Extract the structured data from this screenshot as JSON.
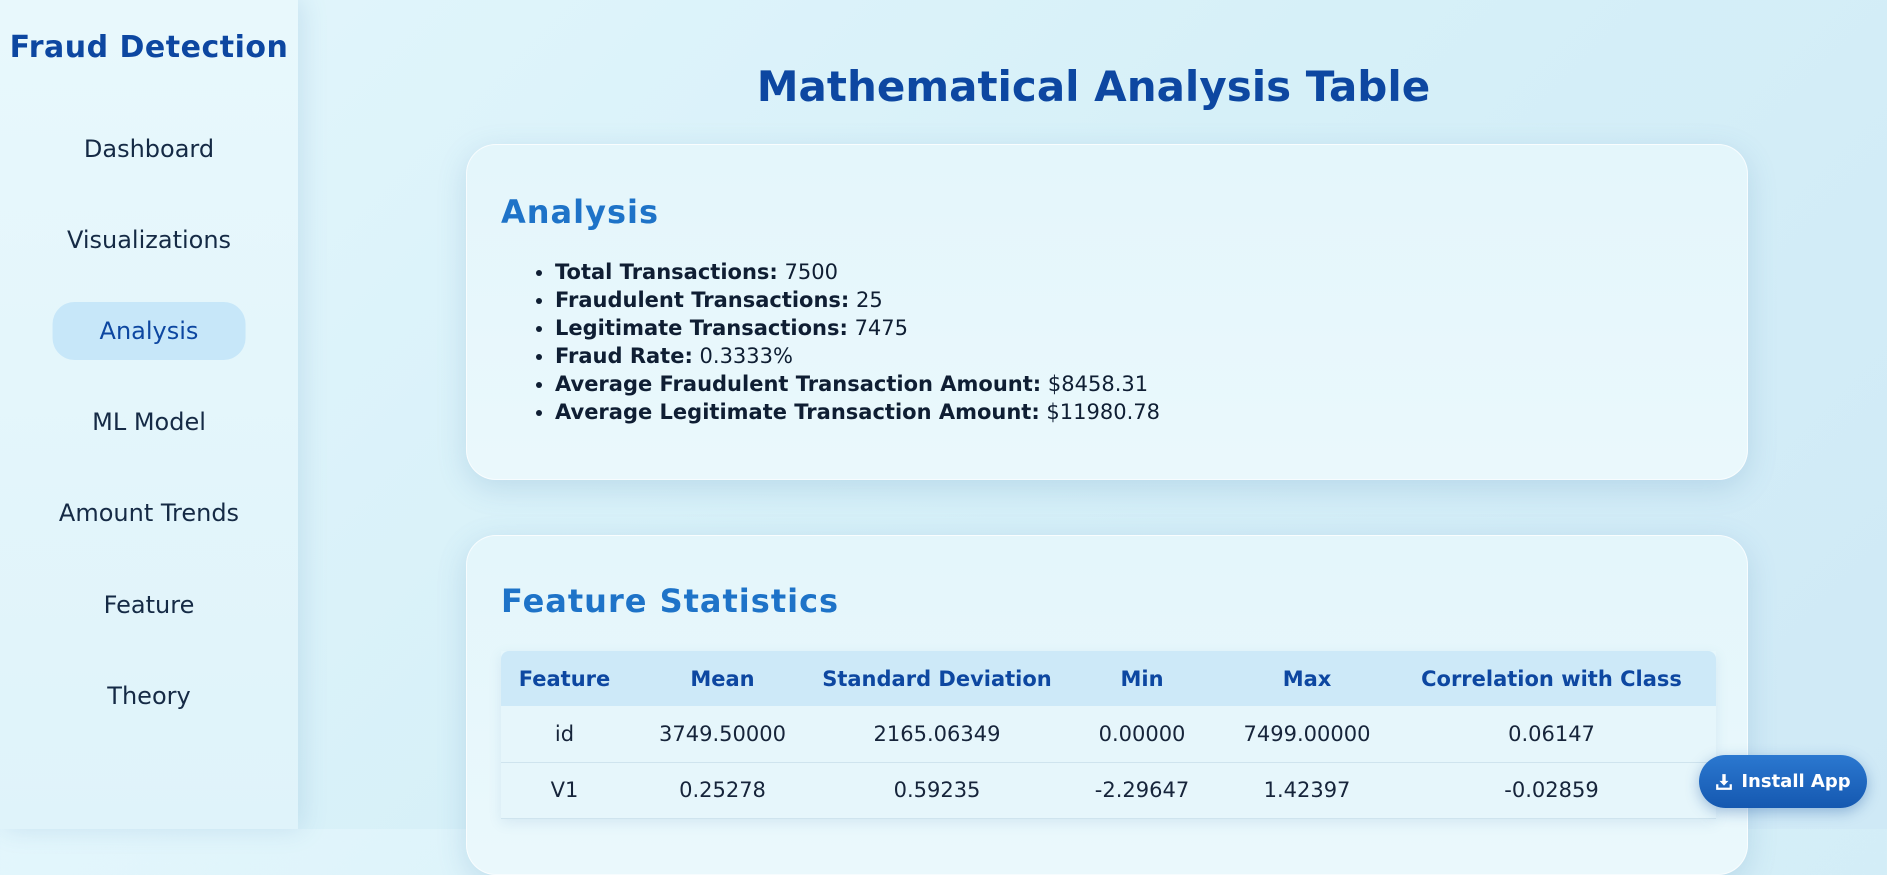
{
  "sidebar": {
    "brand": "Fraud Detection",
    "items": [
      {
        "label": "Dashboard"
      },
      {
        "label": "Visualizations"
      },
      {
        "label": "Analysis",
        "active": true
      },
      {
        "label": "ML Model"
      },
      {
        "label": "Amount Trends"
      },
      {
        "label": "Feature"
      },
      {
        "label": "Theory"
      }
    ]
  },
  "page": {
    "title": "Mathematical Analysis Table"
  },
  "analysis": {
    "heading": "Analysis",
    "stats": [
      {
        "label": "Total Transactions:",
        "value": "7500"
      },
      {
        "label": "Fraudulent Transactions:",
        "value": "25"
      },
      {
        "label": "Legitimate Transactions:",
        "value": "7475"
      },
      {
        "label": "Fraud Rate:",
        "value": "0.3333%"
      },
      {
        "label": "Average Fraudulent Transaction Amount:",
        "value": "$8458.31"
      },
      {
        "label": "Average Legitimate Transaction Amount:",
        "value": "$11980.78"
      }
    ]
  },
  "feature_stats": {
    "heading": "Feature Statistics",
    "columns": [
      "Feature",
      "Mean",
      "Standard Deviation",
      "Min",
      "Max",
      "Correlation with Class"
    ],
    "rows": [
      [
        "id",
        "3749.50000",
        "2165.06349",
        "0.00000",
        "7499.00000",
        "0.06147"
      ],
      [
        "V1",
        "0.25278",
        "0.59235",
        "-2.29647",
        "1.42397",
        "-0.02859"
      ]
    ]
  },
  "install_button": {
    "label": "Install App",
    "icon": "download-icon"
  },
  "colors": {
    "accent": "#0d47a1",
    "heading": "#1e73c8",
    "active_nav_bg": "#c7e7f9",
    "button_bg": "#1558b0"
  }
}
